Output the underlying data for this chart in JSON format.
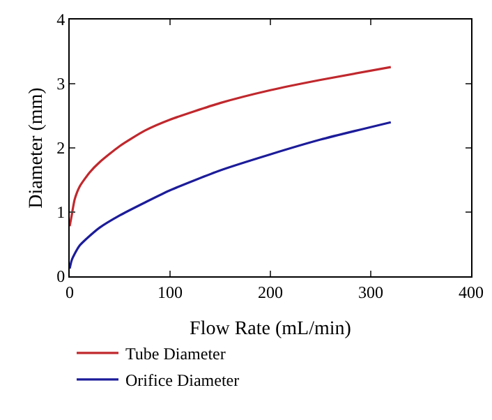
{
  "chart_data": {
    "type": "line",
    "xlabel": "Flow Rate (mL/min)",
    "ylabel": "Diameter (mm)",
    "x": [
      0,
      2,
      5,
      10,
      20,
      30,
      50,
      75,
      100,
      150,
      200,
      250,
      320
    ],
    "series": [
      {
        "name": "Tube Diameter",
        "color": "#c0282d",
        "values": [
          0.78,
          0.95,
          1.2,
          1.4,
          1.62,
          1.78,
          2.03,
          2.27,
          2.44,
          2.7,
          2.9,
          3.06,
          3.26
        ]
      },
      {
        "name": "Orifice Diameter",
        "color": "#1c1c9a",
        "values": [
          0.12,
          0.25,
          0.35,
          0.48,
          0.63,
          0.76,
          0.95,
          1.15,
          1.34,
          1.65,
          1.9,
          2.13,
          2.4
        ]
      }
    ],
    "xlim": [
      0,
      400
    ],
    "xticks": [
      0,
      100,
      200,
      300,
      400
    ],
    "ylim": [
      0,
      4
    ],
    "yticks": [
      0,
      1,
      2,
      3,
      4
    ],
    "grid": false,
    "legend": "bottom left",
    "marker": "none",
    "line_style": "solid"
  }
}
